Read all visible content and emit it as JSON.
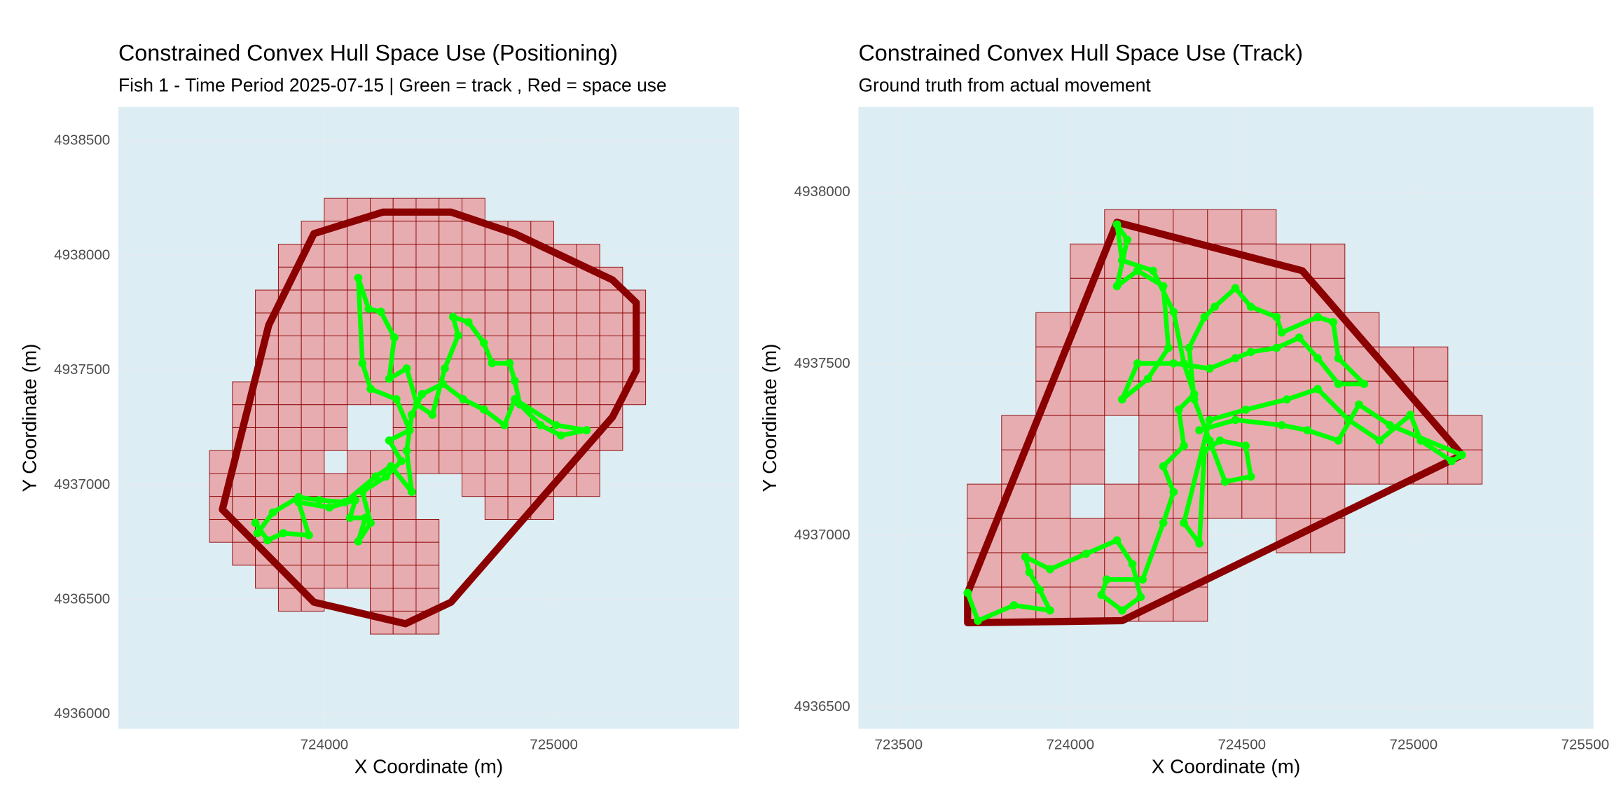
{
  "chart_data": [
    {
      "type": "hull",
      "title": "Constrained Convex Hull Space Use (Positioning)",
      "subtitle": "Fish 1 - Time Period 2025-07-15 | Green = track , Red = space use",
      "xlabel": "X Coordinate (m)",
      "ylabel": "Y Coordinate (m)",
      "xlim": [
        723103,
        725807
      ],
      "ylim": [
        4935937,
        4938648
      ],
      "xticks": [
        724000,
        725000
      ],
      "yticks": [
        4936000,
        4936500,
        4937000,
        4937500,
        4938000,
        4938500
      ],
      "grid": true,
      "background_color": "#dcedf4",
      "cell_size": 100,
      "cell_color": "#e8a4a8",
      "cell_edge_color": "#8b0000",
      "cells": [
        [
          724000,
          724700,
          4938150,
          4938250
        ],
        [
          723900,
          725000,
          4938050,
          4938150
        ],
        [
          723800,
          725200,
          4937950,
          4938050
        ],
        [
          723800,
          725300,
          4937850,
          4937950
        ],
        [
          723700,
          725400,
          4937450,
          4937850
        ],
        [
          723600,
          725400,
          4937350,
          4937450
        ],
        [
          723600,
          724100,
          4937150,
          4937350
        ],
        [
          724300,
          725300,
          4937150,
          4937350
        ],
        [
          723500,
          724000,
          4937050,
          4937150
        ],
        [
          724100,
          725200,
          4937050,
          4937150
        ],
        [
          723500,
          724400,
          4936950,
          4937050
        ],
        [
          724600,
          725200,
          4936950,
          4937050
        ],
        [
          723500,
          724400,
          4936850,
          4936950
        ],
        [
          724700,
          725000,
          4936850,
          4936950
        ],
        [
          723500,
          724500,
          4936750,
          4936850
        ],
        [
          723600,
          724500,
          4936650,
          4936750
        ],
        [
          723700,
          724500,
          4936550,
          4936650
        ],
        [
          723800,
          724000,
          4936450,
          4936550
        ],
        [
          724200,
          724500,
          4936450,
          4936550
        ],
        [
          724200,
          724500,
          4936350,
          4936450
        ]
      ],
      "hull": {
        "color": "#8b0000",
        "x": [
          723955,
          724256,
          724552,
          724830,
          725256,
          725359,
          725359,
          725256,
          724552,
          724354,
          723955,
          723556,
          723758
        ],
        "y": [
          4938096,
          4938190,
          4938190,
          4938096,
          4937894,
          4937795,
          4937499,
          4937297,
          4936489,
          4936395,
          4936489,
          4936893,
          4937697
        ]
      },
      "track": {
        "color": "#00ff00",
        "x": [
          723700,
          723753,
          723821,
          723933,
          723888,
          724022,
          724135,
          724112,
          724179,
          724148,
          724202,
          724166,
          724269,
          724336,
          724283,
          724372,
          724314,
          724202,
          724166,
          724148,
          724193,
          724247,
          724305,
          724283,
          724359,
          724404,
          724471,
          724525,
          724583,
          724561,
          724628,
          724695,
          724731,
          724807,
          724830,
          724852,
          724942,
          725031,
          725143,
          725009,
          724830,
          724785,
          724695,
          724605,
          724516,
          724426,
          724381,
          724359,
          724381,
          724291,
          724224,
          724090,
          723978,
          723888,
          723776,
          723709
        ],
        "y": [
          4936835,
          4936759,
          4936790,
          4936781,
          4936925,
          4936902,
          4936934,
          4936857,
          4936857,
          4936754,
          4936835,
          4936970,
          4937037,
          4937104,
          4937194,
          4937239,
          4937374,
          4937419,
          4937531,
          4937903,
          4937768,
          4937755,
          4937643,
          4937463,
          4937508,
          4937351,
          4937306,
          4937508,
          4937652,
          4937733,
          4937710,
          4937620,
          4937531,
          4937531,
          4937454,
          4937351,
          4937261,
          4937216,
          4937239,
          4937261,
          4937374,
          4937261,
          4937329,
          4937374,
          4937441,
          4937396,
          4937306,
          4937149,
          4936970,
          4937082,
          4937037,
          4936925,
          4936934,
          4936947,
          4936880,
          4936790
        ]
      }
    },
    {
      "type": "hull",
      "title": "Constrained Convex Hull Space Use (Track)",
      "subtitle": "Ground truth from actual movement",
      "xlabel": "X Coordinate (m)",
      "ylabel": "Y Coordinate (m)",
      "xlim": [
        723383,
        725524
      ],
      "ylim": [
        4936437,
        4938249
      ],
      "xticks": [
        723500,
        724000,
        724500,
        725000,
        725500
      ],
      "yticks": [
        4936500,
        4937000,
        4937500,
        4938000
      ],
      "grid": true,
      "background_color": "#dcedf4",
      "cell_size": 100,
      "cell_color": "#e8a4a8",
      "cell_edge_color": "#8b0000",
      "cells": [
        [
          724100,
          724600,
          4937850,
          4937950
        ],
        [
          724000,
          724800,
          4937650,
          4937850
        ],
        [
          723900,
          724900,
          4937550,
          4937650
        ],
        [
          723900,
          725100,
          4937350,
          4937550
        ],
        [
          723800,
          724100,
          4937150,
          4937350
        ],
        [
          724200,
          725200,
          4937150,
          4937350
        ],
        [
          723700,
          724000,
          4937050,
          4937150
        ],
        [
          724100,
          724800,
          4937050,
          4937150
        ],
        [
          723700,
          724400,
          4936950,
          4937050
        ],
        [
          724600,
          724800,
          4936950,
          4937050
        ],
        [
          723700,
          724400,
          4936750,
          4936950
        ]
      ],
      "hull": {
        "color": "#8b0000",
        "x": [
          724136,
          724676,
          725141,
          724151,
          723701,
          723701
        ],
        "y": [
          4937913,
          4937772,
          4937235,
          4936752,
          4936746,
          4936833
        ]
      },
      "track": {
        "color": "#00ff00",
        "x": [
          723701,
          723731,
          723836,
          723941,
          723911,
          723881,
          723869,
          723941,
          724046,
          724136,
          724181,
          724205,
          724151,
          724091,
          724106,
          724211,
          724271,
          724301,
          724271,
          724331,
          724316,
          724361,
          724331,
          724301,
          724241,
          724151,
          724136,
          724166,
          724136,
          724196,
          724271,
          724286,
          724226,
          724151,
          724196,
          724301,
          724406,
          724481,
          724526,
          724601,
          724667,
          724721,
          724781,
          724856,
          724781,
          724766,
          724721,
          724616,
          724601,
          724526,
          724481,
          724421,
          724391,
          724346,
          724361,
          724406,
          724451,
          724526,
          724511,
          724436,
          724391,
          724376,
          724331,
          724406,
          724511,
          724631,
          724721,
          724811,
          724901,
          724991,
          725021,
          725111,
          725141,
          724931,
          724841,
          724781,
          724691,
          724616,
          724481,
          724376
        ],
        "y": [
          4936833,
          4936752,
          4936797,
          4936782,
          4936842,
          4936893,
          4936938,
          4936902,
          4936947,
          4936986,
          4936917,
          4936821,
          4936782,
          4936827,
          4936872,
          4936872,
          4937037,
          4937127,
          4937202,
          4937262,
          4937367,
          4937412,
          4937502,
          4937652,
          4937772,
          4937802,
          4937907,
          4937862,
          4937727,
          4937772,
          4937727,
          4937547,
          4937457,
          4937397,
          4937502,
          4937502,
          4937487,
          4937517,
          4937535,
          4937547,
          4937577,
          4937517,
          4937442,
          4937442,
          4937517,
          4937622,
          4937637,
          4937592,
          4937637,
          4937667,
          4937721,
          4937667,
          4937637,
          4937547,
          4937397,
          4937277,
          4937157,
          4937172,
          4937262,
          4937277,
          4937247,
          4936977,
          4937037,
          4937337,
          4937367,
          4937397,
          4937427,
          4937337,
          4937277,
          4937352,
          4937277,
          4937217,
          4937235,
          4937322,
          4937382,
          4937277,
          4937307,
          4937322,
          4937337,
          4937307
        ]
      }
    }
  ]
}
